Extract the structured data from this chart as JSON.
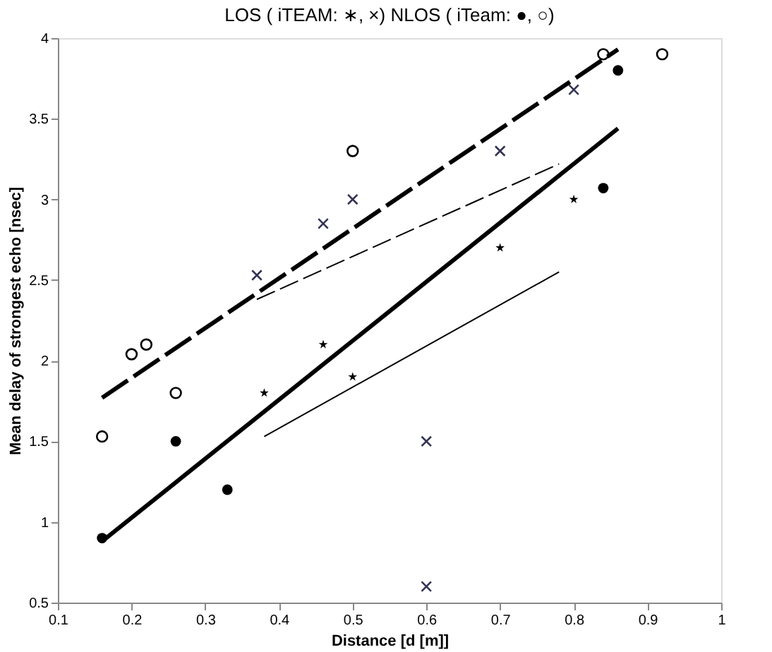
{
  "chart_data": {
    "type": "scatter",
    "title": "LOS ( iTEAM: ∗, ×)  NLOS ( iTeam: ●, ○)",
    "xlabel": "Distance [d [m]]",
    "ylabel": "Mean delay of strongest echo [nsec]",
    "xlim": [
      0.1,
      1
    ],
    "xticks": [
      0.1,
      0.2,
      0.3,
      0.4,
      0.5,
      0.6,
      0.7,
      0.8,
      0.9,
      1
    ],
    "ylim": [
      0.5,
      4
    ],
    "yticks": [
      0.5,
      1,
      1.5,
      2,
      2.5,
      3,
      3.5,
      4
    ],
    "grid": false,
    "series": [
      {
        "marker": "star",
        "color": "#000000",
        "x": [
          0.38,
          0.46,
          0.5,
          0.7,
          0.8
        ],
        "values": [
          1.8,
          2.1,
          1.9,
          2.7,
          3.0
        ]
      },
      {
        "marker": "cross",
        "color": "#333355",
        "x": [
          0.37,
          0.46,
          0.5,
          0.6,
          0.6,
          0.7,
          0.8
        ],
        "values": [
          2.53,
          2.85,
          3.0,
          1.5,
          0.6,
          3.3,
          3.68
        ]
      },
      {
        "marker": "circle",
        "color": "#000000",
        "x": [
          0.16,
          0.26,
          0.33,
          0.84,
          0.86
        ],
        "values": [
          0.9,
          1.5,
          1.2,
          3.07,
          3.8
        ]
      },
      {
        "marker": "circle",
        "color": "#000000",
        "x": [
          0.16,
          0.2,
          0.22,
          0.26,
          0.5,
          0.84,
          0.92
        ],
        "values": [
          1.53,
          2.04,
          2.1,
          1.8,
          3.3,
          3.9,
          3.9
        ]
      },
      {
        "type": "line",
        "line_style": "dashed",
        "color": "#000000",
        "x": [
          0.16,
          0.86
        ],
        "values": [
          1.77,
          3.93
        ]
      },
      {
        "type": "line",
        "line_style": "dashed",
        "color": "#000000",
        "x": [
          0.37,
          0.78
        ],
        "values": [
          2.38,
          3.22
        ]
      },
      {
        "type": "line",
        "line_style": "solid",
        "color": "#000000",
        "x": [
          0.16,
          0.86
        ],
        "values": [
          0.88,
          3.44
        ]
      },
      {
        "type": "line",
        "line_style": "solid",
        "color": "#000000",
        "x": [
          0.38,
          0.78
        ],
        "values": [
          1.53,
          2.55
        ]
      }
    ]
  }
}
